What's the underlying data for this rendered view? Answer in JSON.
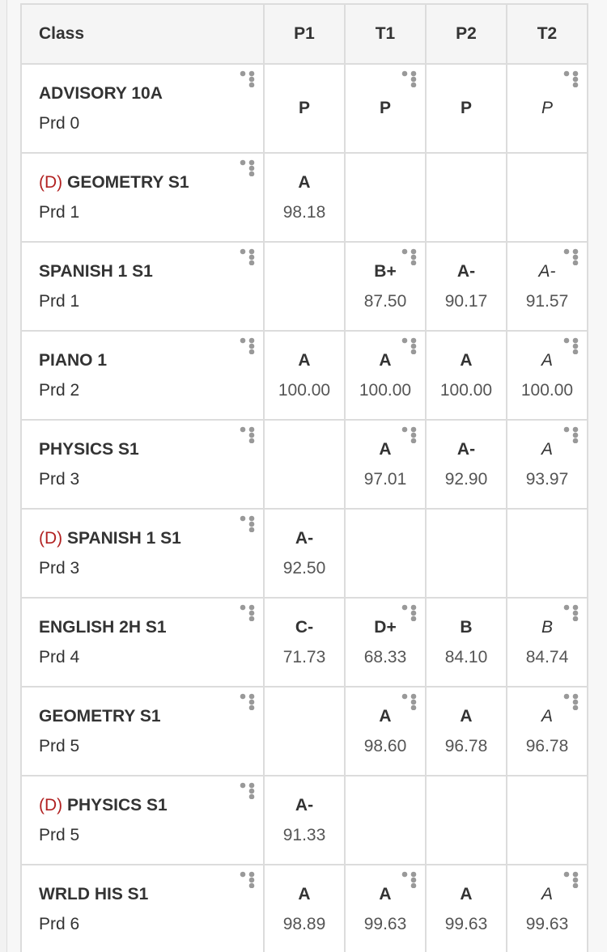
{
  "table": {
    "header": [
      "Class",
      "P1",
      "T1",
      "P2",
      "T2"
    ],
    "rows": [
      {
        "name": "ADVISORY 10A",
        "period": "Prd 0",
        "cells": [
          {
            "grade": "P"
          },
          {
            "grade": "P"
          },
          {
            "grade": "P"
          },
          {
            "grade": "P"
          }
        ]
      },
      {
        "flag": "(D)",
        "name": "GEOMETRY S1",
        "period": "Prd 1",
        "cells": [
          {
            "grade": "A",
            "percent": "98.18"
          },
          null,
          null,
          null
        ]
      },
      {
        "name": "SPANISH 1 S1",
        "period": "Prd 1",
        "cells": [
          null,
          {
            "grade": "B+",
            "percent": "87.50"
          },
          {
            "grade": "A-",
            "percent": "90.17"
          },
          {
            "grade": "A-",
            "percent": "91.57"
          }
        ]
      },
      {
        "name": "PIANO 1",
        "period": "Prd 2",
        "cells": [
          {
            "grade": "A",
            "percent": "100.00"
          },
          {
            "grade": "A",
            "percent": "100.00"
          },
          {
            "grade": "A",
            "percent": "100.00"
          },
          {
            "grade": "A",
            "percent": "100.00"
          }
        ]
      },
      {
        "name": "PHYSICS S1",
        "period": "Prd 3",
        "cells": [
          null,
          {
            "grade": "A",
            "percent": "97.01"
          },
          {
            "grade": "A-",
            "percent": "92.90"
          },
          {
            "grade": "A",
            "percent": "93.97"
          }
        ]
      },
      {
        "flag": "(D)",
        "name": "SPANISH 1 S1",
        "period": "Prd 3",
        "cells": [
          {
            "grade": "A-",
            "percent": "92.50"
          },
          null,
          null,
          null
        ]
      },
      {
        "name": "ENGLISH 2H S1",
        "period": "Prd 4",
        "cells": [
          {
            "grade": "C-",
            "percent": "71.73"
          },
          {
            "grade": "D+",
            "percent": "68.33"
          },
          {
            "grade": "B",
            "percent": "84.10"
          },
          {
            "grade": "B",
            "percent": "84.74"
          }
        ]
      },
      {
        "name": "GEOMETRY S1",
        "period": "Prd 5",
        "cells": [
          null,
          {
            "grade": "A",
            "percent": "98.60"
          },
          {
            "grade": "A",
            "percent": "96.78"
          },
          {
            "grade": "A",
            "percent": "96.78"
          }
        ]
      },
      {
        "flag": "(D)",
        "name": "PHYSICS S1",
        "period": "Prd 5",
        "cells": [
          {
            "grade": "A-",
            "percent": "91.33"
          },
          null,
          null,
          null
        ]
      },
      {
        "name": "WRLD HIS S1",
        "period": "Prd 6",
        "cells": [
          {
            "grade": "A",
            "percent": "98.89"
          },
          {
            "grade": "A",
            "percent": "99.63"
          },
          {
            "grade": "A",
            "percent": "99.63"
          },
          {
            "grade": "A",
            "percent": "99.63"
          }
        ]
      }
    ]
  }
}
